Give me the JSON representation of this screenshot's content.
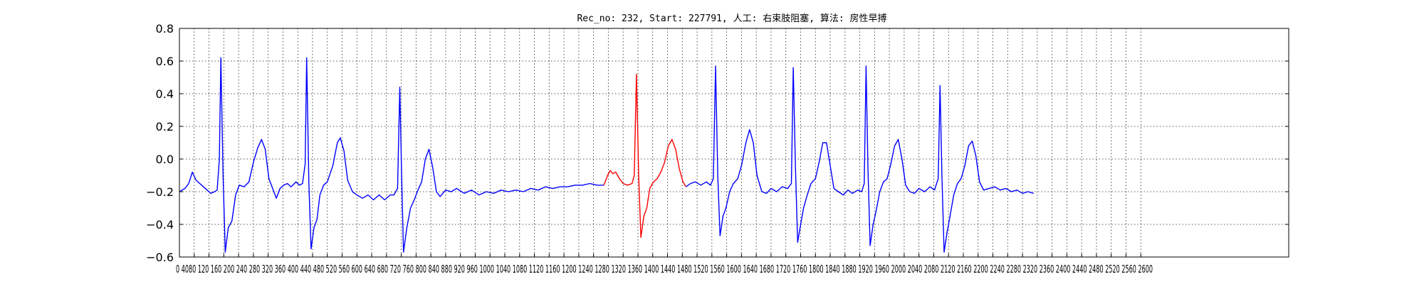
{
  "chart_data": {
    "type": "line",
    "title": "Rec_no: 232, Start: 227791, 人工: 右束肢阻塞, 算法: 房性早搏",
    "xlabel": "",
    "ylabel": "",
    "xlim": [
      0,
      3000
    ],
    "ylim": [
      -0.6,
      0.8
    ],
    "grid": true,
    "yticks": [
      -0.6,
      -0.4,
      -0.2,
      0.0,
      0.2,
      0.4,
      0.6,
      0.8
    ],
    "ytick_labels": [
      "−0.6",
      "−0.4",
      "−0.2",
      "0.0",
      "0.2",
      "0.4",
      "0.6",
      "0.8"
    ],
    "xticks": [
      0,
      40,
      80,
      120,
      160,
      200,
      240,
      280,
      320,
      360,
      400,
      440,
      480,
      520,
      560,
      600,
      640,
      680,
      720,
      760,
      800,
      840,
      880,
      920,
      960,
      1000,
      1040,
      1080,
      1120,
      1160,
      1200,
      1240,
      1280,
      1320,
      1360,
      1400,
      1440,
      1480,
      1520,
      1560,
      1600,
      1640,
      1680,
      1720,
      1760,
      1800,
      1840,
      1880,
      1920,
      1960,
      2000,
      2040,
      2080,
      2120,
      2160,
      2200,
      2240,
      2280,
      2320,
      2360,
      2400,
      2440,
      2480,
      2520,
      2560,
      2600
    ],
    "xtick_labels_printed": "0 4080 120 160 200 240 280 320 360 400 440 480 520 560 600 640 680 720 760 800 840 880 920 960 1000 1040 1080 1120 1160 1200 1240 1280 1320 1360 1400 1440 1480 1520 1560 1600 1640 1680 1720 1760 1800 1840 1880 1920 1960 2000 2040 2080 2120 2160 2200 2240 2280 2320 2360 2400 2440 2480 2520 2560 2600",
    "series": [
      {
        "color": "#0000ff",
        "points": [
          [
            0,
            -0.2
          ],
          [
            15,
            -0.18
          ],
          [
            25,
            -0.15
          ],
          [
            35,
            -0.08
          ],
          [
            45,
            -0.13
          ],
          [
            60,
            -0.16
          ],
          [
            75,
            -0.19
          ],
          [
            85,
            -0.21
          ],
          [
            95,
            -0.2
          ],
          [
            102,
            -0.19
          ],
          [
            108,
            0.0
          ],
          [
            112,
            0.62
          ],
          [
            118,
            -0.1
          ],
          [
            124,
            -0.57
          ],
          [
            132,
            -0.42
          ],
          [
            142,
            -0.38
          ],
          [
            152,
            -0.22
          ],
          [
            162,
            -0.16
          ],
          [
            175,
            -0.17
          ],
          [
            188,
            -0.14
          ],
          [
            200,
            -0.02
          ],
          [
            212,
            0.07
          ],
          [
            222,
            0.12
          ],
          [
            232,
            0.06
          ],
          [
            242,
            -0.12
          ],
          [
            252,
            -0.18
          ],
          [
            262,
            -0.24
          ],
          [
            272,
            -0.18
          ],
          [
            282,
            -0.16
          ],
          [
            292,
            -0.15
          ],
          [
            302,
            -0.17
          ],
          [
            315,
            -0.14
          ],
          [
            325,
            -0.16
          ],
          [
            333,
            -0.15
          ],
          [
            340,
            -0.03
          ],
          [
            344,
            0.62
          ],
          [
            350,
            -0.15
          ],
          [
            356,
            -0.55
          ],
          [
            364,
            -0.42
          ],
          [
            372,
            -0.37
          ],
          [
            380,
            -0.22
          ],
          [
            390,
            -0.16
          ],
          [
            400,
            -0.14
          ],
          [
            415,
            -0.04
          ],
          [
            427,
            0.1
          ],
          [
            435,
            0.13
          ],
          [
            445,
            0.05
          ],
          [
            455,
            -0.13
          ],
          [
            468,
            -0.2
          ],
          [
            480,
            -0.22
          ],
          [
            495,
            -0.24
          ],
          [
            510,
            -0.22
          ],
          [
            525,
            -0.25
          ],
          [
            540,
            -0.22
          ],
          [
            555,
            -0.25
          ],
          [
            570,
            -0.22
          ],
          [
            580,
            -0.22
          ],
          [
            590,
            -0.18
          ],
          [
            596,
            0.44
          ],
          [
            601,
            -0.1
          ],
          [
            606,
            -0.57
          ],
          [
            615,
            -0.42
          ],
          [
            625,
            -0.3
          ],
          [
            635,
            -0.25
          ],
          [
            645,
            -0.19
          ],
          [
            655,
            -0.14
          ],
          [
            665,
            0.0
          ],
          [
            675,
            0.06
          ],
          [
            685,
            -0.05
          ],
          [
            695,
            -0.2
          ],
          [
            705,
            -0.23
          ],
          [
            720,
            -0.19
          ],
          [
            735,
            -0.2
          ],
          [
            750,
            -0.18
          ],
          [
            770,
            -0.21
          ],
          [
            790,
            -0.19
          ],
          [
            810,
            -0.22
          ],
          [
            830,
            -0.2
          ],
          [
            850,
            -0.21
          ],
          [
            870,
            -0.19
          ],
          [
            890,
            -0.2
          ],
          [
            910,
            -0.19
          ],
          [
            930,
            -0.2
          ],
          [
            950,
            -0.18
          ],
          [
            970,
            -0.19
          ],
          [
            990,
            -0.17
          ],
          [
            1010,
            -0.18
          ],
          [
            1030,
            -0.17
          ],
          [
            1050,
            -0.17
          ],
          [
            1070,
            -0.16
          ],
          [
            1090,
            -0.16
          ],
          [
            1110,
            -0.15
          ],
          [
            1130,
            -0.16
          ],
          [
            1148,
            -0.16
          ]
        ]
      },
      {
        "color": "#ff0000",
        "points": [
          [
            1148,
            -0.16
          ],
          [
            1158,
            -0.1
          ],
          [
            1165,
            -0.07
          ],
          [
            1172,
            -0.09
          ],
          [
            1180,
            -0.08
          ],
          [
            1190,
            -0.12
          ],
          [
            1200,
            -0.15
          ],
          [
            1212,
            -0.16
          ],
          [
            1224,
            -0.15
          ],
          [
            1230,
            -0.1
          ],
          [
            1236,
            0.52
          ],
          [
            1242,
            -0.1
          ],
          [
            1248,
            -0.48
          ],
          [
            1256,
            -0.35
          ],
          [
            1264,
            -0.3
          ],
          [
            1272,
            -0.18
          ],
          [
            1282,
            -0.14
          ],
          [
            1292,
            -0.12
          ],
          [
            1302,
            -0.08
          ],
          [
            1312,
            -0.02
          ],
          [
            1322,
            0.08
          ],
          [
            1332,
            0.12
          ],
          [
            1342,
            0.06
          ],
          [
            1352,
            -0.06
          ],
          [
            1362,
            -0.14
          ],
          [
            1370,
            -0.17
          ]
        ]
      },
      {
        "color": "#0000ff",
        "points": [
          [
            1370,
            -0.17
          ],
          [
            1382,
            -0.15
          ],
          [
            1395,
            -0.14
          ],
          [
            1410,
            -0.16
          ],
          [
            1425,
            -0.14
          ],
          [
            1436,
            -0.16
          ],
          [
            1444,
            -0.12
          ],
          [
            1450,
            0.57
          ],
          [
            1456,
            -0.1
          ],
          [
            1462,
            -0.47
          ],
          [
            1470,
            -0.35
          ],
          [
            1478,
            -0.3
          ],
          [
            1488,
            -0.2
          ],
          [
            1498,
            -0.15
          ],
          [
            1510,
            -0.12
          ],
          [
            1520,
            -0.04
          ],
          [
            1532,
            0.1
          ],
          [
            1542,
            0.18
          ],
          [
            1552,
            0.1
          ],
          [
            1562,
            -0.1
          ],
          [
            1575,
            -0.2
          ],
          [
            1588,
            -0.21
          ],
          [
            1600,
            -0.18
          ],
          [
            1615,
            -0.2
          ],
          [
            1630,
            -0.17
          ],
          [
            1645,
            -0.18
          ],
          [
            1655,
            -0.15
          ],
          [
            1660,
            0.56
          ],
          [
            1666,
            -0.05
          ],
          [
            1672,
            -0.51
          ],
          [
            1680,
            -0.4
          ],
          [
            1688,
            -0.3
          ],
          [
            1698,
            -0.22
          ],
          [
            1708,
            -0.15
          ],
          [
            1720,
            -0.12
          ],
          [
            1730,
            -0.02
          ],
          [
            1740,
            0.1
          ],
          [
            1750,
            0.1
          ],
          [
            1760,
            -0.04
          ],
          [
            1770,
            -0.18
          ],
          [
            1782,
            -0.2
          ],
          [
            1795,
            -0.22
          ],
          [
            1808,
            -0.19
          ],
          [
            1820,
            -0.21
          ],
          [
            1835,
            -0.19
          ],
          [
            1845,
            -0.2
          ],
          [
            1852,
            -0.15
          ],
          [
            1857,
            0.57
          ],
          [
            1862,
            -0.05
          ],
          [
            1868,
            -0.53
          ],
          [
            1876,
            -0.4
          ],
          [
            1884,
            -0.32
          ],
          [
            1894,
            -0.2
          ],
          [
            1904,
            -0.14
          ],
          [
            1914,
            -0.12
          ],
          [
            1924,
            -0.03
          ],
          [
            1934,
            0.08
          ],
          [
            1944,
            0.12
          ],
          [
            1954,
            0.0
          ],
          [
            1964,
            -0.16
          ],
          [
            1975,
            -0.2
          ],
          [
            1988,
            -0.21
          ],
          [
            2000,
            -0.18
          ],
          [
            2015,
            -0.2
          ],
          [
            2030,
            -0.17
          ],
          [
            2042,
            -0.19
          ],
          [
            2052,
            -0.12
          ],
          [
            2057,
            0.45
          ],
          [
            2062,
            -0.1
          ],
          [
            2068,
            -0.57
          ],
          [
            2076,
            -0.45
          ],
          [
            2084,
            -0.35
          ],
          [
            2094,
            -0.22
          ],
          [
            2104,
            -0.15
          ],
          [
            2114,
            -0.12
          ],
          [
            2124,
            -0.04
          ],
          [
            2134,
            0.08
          ],
          [
            2144,
            0.11
          ],
          [
            2154,
            0.02
          ],
          [
            2164,
            -0.14
          ],
          [
            2175,
            -0.19
          ],
          [
            2190,
            -0.18
          ],
          [
            2205,
            -0.17
          ],
          [
            2220,
            -0.19
          ],
          [
            2235,
            -0.18
          ],
          [
            2250,
            -0.2
          ],
          [
            2265,
            -0.19
          ],
          [
            2280,
            -0.21
          ],
          [
            2295,
            -0.2
          ],
          [
            2310,
            -0.21
          ]
        ]
      }
    ]
  }
}
